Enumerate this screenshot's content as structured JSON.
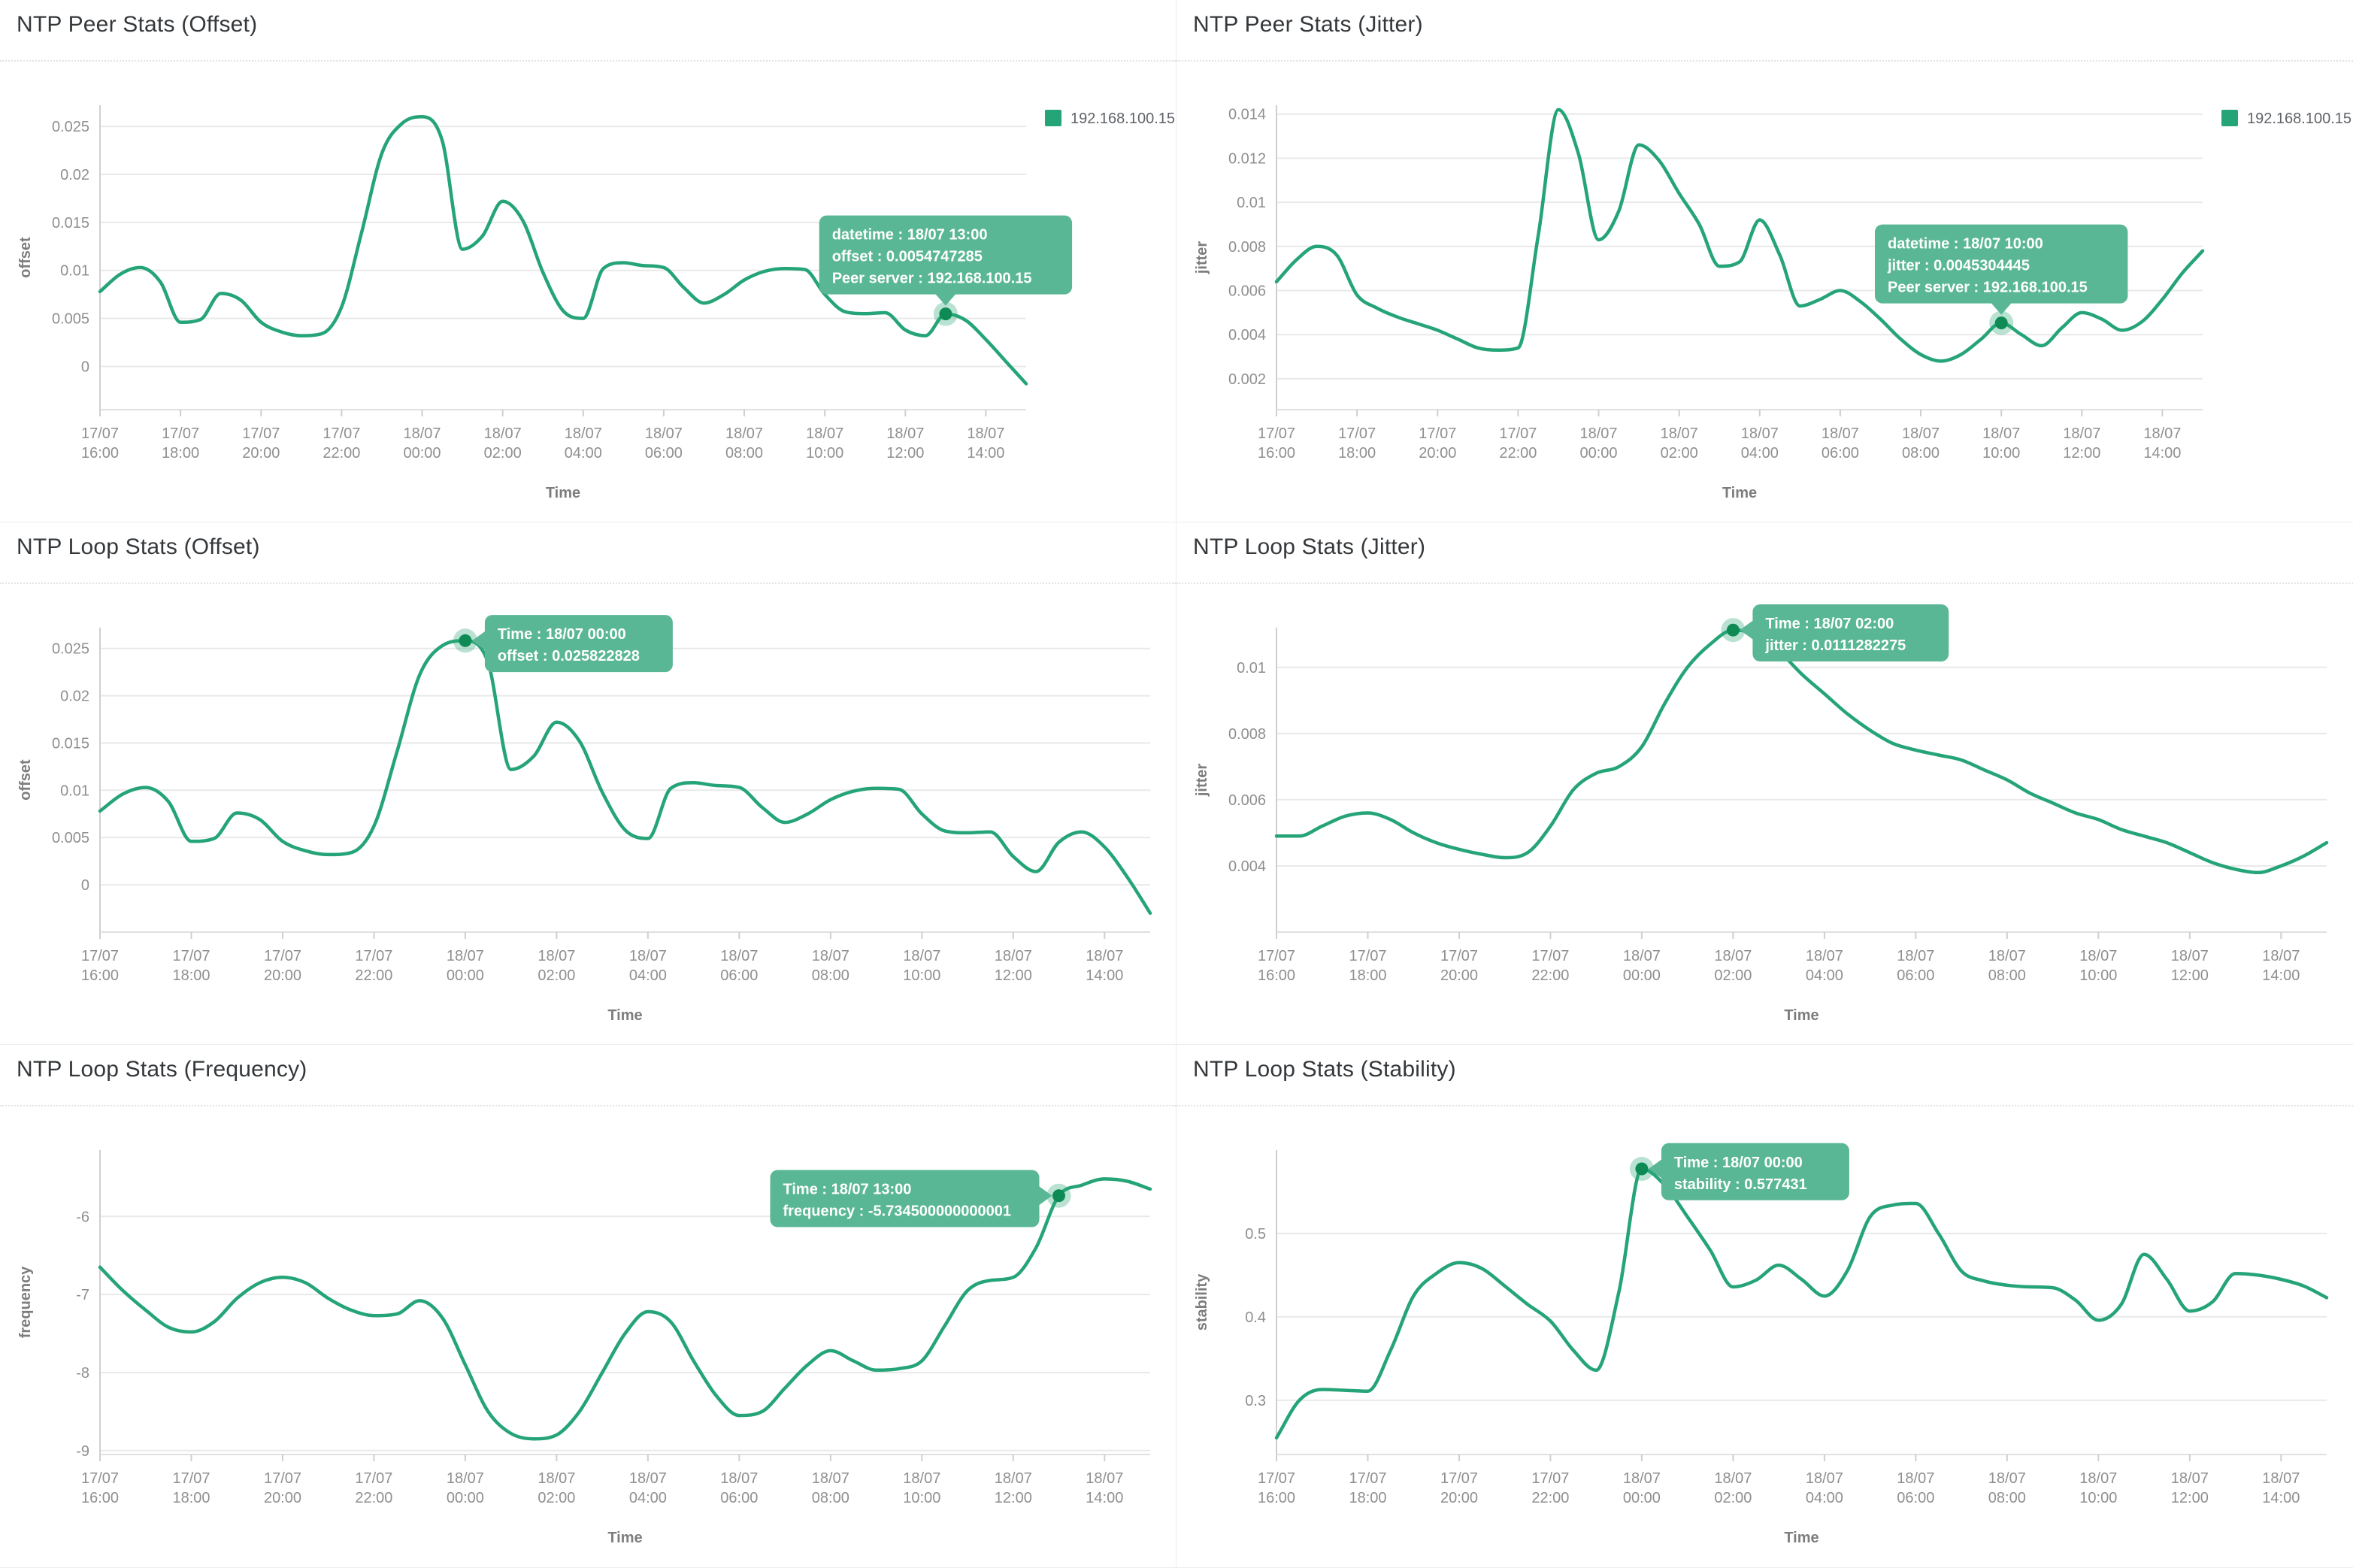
{
  "colors": {
    "line": "#25a477",
    "tooltip_bg": "#5ab795",
    "tooltip_text": "#ffffff",
    "marker_dot": "#0e8a55",
    "marker_halo": "#25a477",
    "grid": "#e9e9e9",
    "axis_line": "#cfcfcf",
    "tick_text": "#8f8f8f",
    "axis_title_text": "#7d7d7d",
    "panel_title_text": "#35383b",
    "legend_text": "#5f6368"
  },
  "x_axis": {
    "title": "Time",
    "tick_labels": [
      {
        "date": "17/07",
        "time": "16:00"
      },
      {
        "date": "17/07",
        "time": "18:00"
      },
      {
        "date": "17/07",
        "time": "20:00"
      },
      {
        "date": "17/07",
        "time": "22:00"
      },
      {
        "date": "18/07",
        "time": "00:00"
      },
      {
        "date": "18/07",
        "time": "02:00"
      },
      {
        "date": "18/07",
        "time": "04:00"
      },
      {
        "date": "18/07",
        "time": "06:00"
      },
      {
        "date": "18/07",
        "time": "08:00"
      },
      {
        "date": "18/07",
        "time": "10:00"
      },
      {
        "date": "18/07",
        "time": "12:00"
      },
      {
        "date": "18/07",
        "time": "14:00"
      }
    ],
    "sample_interval_minutes": 30,
    "range_start": "17/07 16:00",
    "range_end": "18/07 15:00"
  },
  "chart_data": [
    {
      "type": "line",
      "title": "NTP Peer Stats (Offset)",
      "ylabel": "offset",
      "xlabel": "Time",
      "legend": "192.168.100.15",
      "legend_position": "right",
      "grid": true,
      "y_tick_labels": [
        "0",
        "0.005",
        "0.01",
        "0.015",
        "0.02",
        "0.025"
      ],
      "ylim": [
        -0.0045,
        0.0272
      ],
      "values": [
        0.0078,
        0.0096,
        0.0103,
        0.0088,
        0.0046,
        0.0049,
        0.0076,
        0.0069,
        0.0046,
        0.0036,
        0.0032,
        0.0034,
        0.0062,
        0.014,
        0.0222,
        0.0253,
        0.026,
        0.0235,
        0.0122,
        0.0136,
        0.0172,
        0.0152,
        0.0098,
        0.0058,
        0.005,
        0.0102,
        0.0108,
        0.0105,
        0.0103,
        0.0082,
        0.0066,
        0.0075,
        0.009,
        0.0099,
        0.0102,
        0.0101,
        0.0075,
        0.0057,
        0.0055,
        0.0056,
        0.0038,
        0.0032,
        0.0054747285,
        0.0048,
        0.0028,
        0.0005,
        -0.0018
      ],
      "highlight": {
        "index": 42,
        "time": "18/07 13:00",
        "value": 0.0054747285,
        "placement": "above",
        "tooltip_lines": [
          "datetime : 18/07 13:00",
          "offset : 0.0054747285",
          "Peer server : 192.168.100.15"
        ]
      }
    },
    {
      "type": "line",
      "title": "NTP Peer Stats (Jitter)",
      "ylabel": "jitter",
      "xlabel": "Time",
      "legend": "192.168.100.15",
      "legend_position": "right",
      "grid": true,
      "y_tick_labels": [
        "0.002",
        "0.004",
        "0.006",
        "0.008",
        "0.01",
        "0.012",
        "0.014"
      ],
      "ylim": [
        0.0006,
        0.0144
      ],
      "values": [
        0.0064,
        0.0074,
        0.008,
        0.0076,
        0.0058,
        0.0052,
        0.0048,
        0.0045,
        0.0042,
        0.0038,
        0.0034,
        0.0033,
        0.0034,
        0.0085,
        0.0142,
        0.0122,
        0.0083,
        0.0096,
        0.0126,
        0.0119,
        0.0104,
        0.009,
        0.0071,
        0.0073,
        0.0092,
        0.0076,
        0.0053,
        0.0056,
        0.006,
        0.0055,
        0.0047,
        0.0038,
        0.0031,
        0.0028,
        0.0031,
        0.0038,
        0.0045304445,
        0.004,
        0.0035,
        0.0043,
        0.005,
        0.0047,
        0.0042,
        0.0046,
        0.0056,
        0.0068,
        0.0078
      ],
      "highlight": {
        "index": 36,
        "time": "18/07 10:00",
        "value": 0.0045304445,
        "placement": "above",
        "tooltip_lines": [
          "datetime : 18/07 10:00",
          "jitter : 0.0045304445",
          "Peer server : 192.168.100.15"
        ]
      }
    },
    {
      "type": "line",
      "title": "NTP Loop Stats (Offset)",
      "ylabel": "offset",
      "xlabel": "Time",
      "legend": null,
      "grid": true,
      "y_tick_labels": [
        "0",
        "0.005",
        "0.01",
        "0.015",
        "0.02",
        "0.025"
      ],
      "ylim": [
        -0.005,
        0.0272
      ],
      "values": [
        0.0078,
        0.0096,
        0.0103,
        0.0088,
        0.0046,
        0.0049,
        0.0076,
        0.0069,
        0.0046,
        0.0036,
        0.0032,
        0.0034,
        0.0062,
        0.014,
        0.0222,
        0.0253,
        0.025822828,
        0.0235,
        0.0122,
        0.0136,
        0.0172,
        0.0152,
        0.0098,
        0.0058,
        0.0049,
        0.0102,
        0.0108,
        0.0105,
        0.0103,
        0.0082,
        0.0066,
        0.0075,
        0.009,
        0.0099,
        0.0102,
        0.0101,
        0.0075,
        0.0057,
        0.0055,
        0.0056,
        0.003,
        0.0014,
        0.0045,
        0.0056,
        0.004,
        0.0008,
        -0.003
      ],
      "highlight": {
        "index": 16,
        "time": "18/07 00:00",
        "value": 0.025822828,
        "placement": "right",
        "tooltip_lines": [
          "Time : 18/07 00:00",
          "offset : 0.025822828"
        ]
      }
    },
    {
      "type": "line",
      "title": "NTP Loop Stats (Jitter)",
      "ylabel": "jitter",
      "xlabel": "Time",
      "legend": null,
      "grid": true,
      "y_tick_labels": [
        "0.004",
        "0.006",
        "0.008",
        "0.01"
      ],
      "ylim": [
        0.002,
        0.0112
      ],
      "values": [
        0.0049,
        0.0049,
        0.0052,
        0.0055,
        0.0056,
        0.0054,
        0.005,
        0.0047,
        0.0045,
        0.00435,
        0.00425,
        0.0044,
        0.0052,
        0.0063,
        0.0068,
        0.007,
        0.0076,
        0.0089,
        0.01,
        0.0107,
        0.0111282275,
        0.011,
        0.0105,
        0.0098,
        0.0092,
        0.0086,
        0.0081,
        0.0077,
        0.0075,
        0.00735,
        0.0072,
        0.0069,
        0.0066,
        0.0062,
        0.0059,
        0.0056,
        0.0054,
        0.0051,
        0.0049,
        0.0047,
        0.0044,
        0.0041,
        0.0039,
        0.0038,
        0.004,
        0.0043,
        0.0047
      ],
      "highlight": {
        "index": 20,
        "time": "18/07 02:00",
        "value": 0.0111282275,
        "placement": "right",
        "tooltip_lines": [
          "Time : 18/07 02:00",
          "jitter : 0.0111282275"
        ]
      }
    },
    {
      "type": "line",
      "title": "NTP Loop Stats (Frequency)",
      "ylabel": "frequency",
      "xlabel": "Time",
      "legend": null,
      "grid": true,
      "y_tick_labels": [
        "-9",
        "-8",
        "-7",
        "-6"
      ],
      "ylim": [
        -9.05,
        -5.15
      ],
      "values": [
        -6.65,
        -6.95,
        -7.2,
        -7.42,
        -7.48,
        -7.35,
        -7.05,
        -6.85,
        -6.78,
        -6.85,
        -7.05,
        -7.2,
        -7.27,
        -7.25,
        -7.08,
        -7.3,
        -7.9,
        -8.5,
        -8.78,
        -8.85,
        -8.8,
        -8.5,
        -8.0,
        -7.5,
        -7.22,
        -7.35,
        -7.85,
        -8.3,
        -8.55,
        -8.5,
        -8.2,
        -7.9,
        -7.72,
        -7.85,
        -7.97,
        -7.95,
        -7.85,
        -7.4,
        -6.95,
        -6.82,
        -6.78,
        -6.4,
        -5.734500000000001,
        -5.6,
        -5.52,
        -5.55,
        -5.65
      ],
      "highlight": {
        "index": 42,
        "time": "18/07 13:00",
        "value": -5.734500000000001,
        "placement": "left",
        "tooltip_lines": [
          "Time : 18/07 13:00",
          "frequency : -5.734500000000001"
        ]
      }
    },
    {
      "type": "line",
      "title": "NTP Loop Stats (Stability)",
      "ylabel": "stability",
      "xlabel": "Time",
      "legend": null,
      "grid": true,
      "y_tick_labels": [
        "0.3",
        "0.4",
        "0.5"
      ],
      "ylim": [
        0.235,
        0.6
      ],
      "values": [
        0.255,
        0.3,
        0.313,
        0.312,
        0.311,
        0.36,
        0.425,
        0.452,
        0.465,
        0.458,
        0.437,
        0.415,
        0.395,
        0.36,
        0.336,
        0.43,
        0.577431,
        0.558,
        0.52,
        0.48,
        0.436,
        0.444,
        0.462,
        0.445,
        0.425,
        0.455,
        0.52,
        0.534,
        0.536,
        0.5,
        0.455,
        0.443,
        0.438,
        0.436,
        0.435,
        0.42,
        0.396,
        0.415,
        0.475,
        0.445,
        0.407,
        0.418,
        0.452,
        0.45,
        0.445,
        0.437,
        0.423
      ],
      "highlight": {
        "index": 16,
        "time": "18/07 00:00",
        "value": 0.577431,
        "placement": "right",
        "tooltip_lines": [
          "Time : 18/07 00:00",
          "stability : 0.577431"
        ]
      }
    }
  ]
}
